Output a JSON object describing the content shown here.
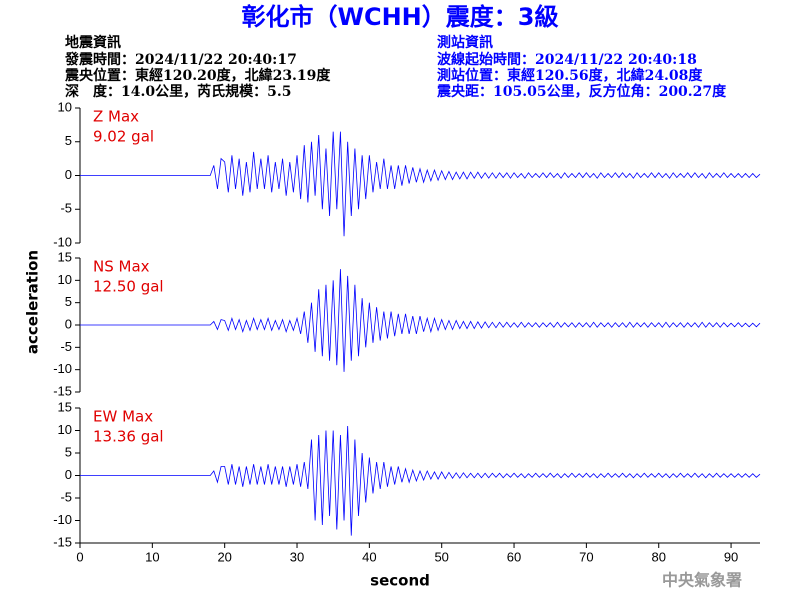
{
  "header": {
    "title": "彰化市（WCHH）震度：3級",
    "left": [
      "地震資訊",
      "發震時間：2024/11/22 20:40:17",
      "震央位置：東經120.20度，北緯23.19度",
      "深　度：14.0公里，芮氏規模：5.5"
    ],
    "right": [
      "測站資訊",
      "波線起始時間：2024/11/22 20:40:18",
      "測站位置：東經120.56度，北緯24.08度",
      "震央距：105.05公里，反方位角：200.27度"
    ],
    "watermark": "中央氣象署"
  },
  "axes": {
    "xlabel": "second",
    "ylabel": "acceleration",
    "xlim": [
      0,
      94
    ],
    "xticks": [
      0,
      10,
      20,
      30,
      40,
      50,
      60,
      70,
      80,
      90
    ]
  },
  "chart_data": [
    {
      "type": "line",
      "label": "Z Max",
      "max_label": "9.02 gal",
      "color": "#0000ff",
      "ylim": [
        -10,
        10
      ],
      "yticks": [
        -10,
        -5,
        0,
        5,
        10
      ],
      "x": [
        0,
        18,
        18.5,
        19,
        19.5,
        20,
        20.5,
        21,
        21.5,
        22,
        22.5,
        23,
        23.5,
        24,
        24.5,
        25,
        25.5,
        26,
        26.5,
        27,
        27.5,
        28,
        28.5,
        29,
        29.5,
        30,
        30.5,
        31,
        31.5,
        32,
        32.5,
        33,
        33.5,
        34,
        34.5,
        35,
        35.5,
        36,
        36.5,
        37,
        37.5,
        38,
        38.5,
        39,
        39.5,
        40,
        40.5,
        41,
        41.5,
        42,
        42.5,
        43,
        43.5,
        44,
        44.5,
        45,
        45.5,
        46,
        46.5,
        47,
        47.5,
        48,
        48.5,
        49,
        49.5,
        50,
        50.5,
        51,
        51.5,
        52,
        52.5,
        53,
        53.5,
        54,
        54.5,
        55,
        55.5,
        56,
        56.5,
        57,
        57.5,
        58,
        58.5,
        59,
        59.5,
        60,
        60.5,
        61,
        61.5,
        62,
        62.5,
        63,
        63.5,
        64,
        64.5,
        65,
        65.5,
        66,
        66.5,
        67,
        67.5,
        68,
        68.5,
        69,
        69.5,
        70,
        70.5,
        71,
        71.5,
        72,
        72.5,
        73,
        73.5,
        74,
        74.5,
        75,
        75.5,
        76,
        76.5,
        77,
        77.5,
        78,
        78.5,
        79,
        79.5,
        80,
        80.5,
        81,
        81.5,
        82,
        82.5,
        83,
        83.5,
        84,
        84.5,
        85,
        85.5,
        86,
        86.5,
        87,
        87.5,
        88,
        88.5,
        89,
        89.5,
        90,
        90.5,
        91,
        91.5,
        92,
        92.5,
        93,
        93.5,
        94
      ],
      "values": [
        0,
        0,
        1.5,
        -2,
        2.5,
        2,
        -2.5,
        3,
        -2,
        2.5,
        -3,
        2,
        -2.5,
        3.5,
        -2,
        2.5,
        -2,
        3,
        -2.5,
        2,
        -2,
        2.5,
        -3,
        2,
        -2.5,
        3,
        -3.5,
        4.5,
        -4,
        5,
        -3,
        6,
        -5,
        4,
        -6,
        6.5,
        -5,
        6.5,
        -9,
        5,
        -6,
        4,
        -5,
        3,
        -3.5,
        3,
        -2.5,
        2,
        -2,
        2.5,
        -2,
        1.5,
        -2,
        1.5,
        -1.5,
        1.5,
        -1.2,
        1.2,
        -1,
        1,
        -1,
        0.8,
        -0.8,
        0.8,
        -0.7,
        0.7,
        -0.6,
        0.6,
        -0.6,
        0.5,
        -0.5,
        0.5,
        -0.5,
        0.5,
        -0.4,
        0.5,
        -0.4,
        0.4,
        -0.4,
        0.4,
        -0.4,
        0.4,
        -0.3,
        0.4,
        -0.4,
        0.4,
        -0.3,
        0.3,
        -0.4,
        0.4,
        -0.3,
        0.3,
        -0.3,
        0.4,
        -0.3,
        0.4,
        -0.3,
        0.3,
        -0.4,
        0.4,
        -0.3,
        0.3,
        -0.3,
        0.4,
        -0.3,
        0.4,
        -0.3,
        0.3,
        -0.4,
        0.4,
        -0.3,
        0.3,
        -0.3,
        0.4,
        -0.3,
        0.4,
        -0.3,
        0.3,
        -0.4,
        0.4,
        -0.3,
        0.3,
        -0.3,
        0.4,
        -0.3,
        0.4,
        -0.3,
        0.3,
        -0.4,
        0.4,
        -0.3,
        0.3,
        -0.3,
        0.4,
        -0.3,
        0.4,
        -0.3,
        0.3,
        -0.4,
        0.4,
        -0.3,
        0.3,
        -0.3,
        0.4,
        -0.3,
        0.3,
        -0.3,
        0.3,
        -0.3,
        0.3,
        -0.3,
        0.3,
        -0.3,
        0.2
      ]
    },
    {
      "type": "line",
      "label": "NS Max",
      "max_label": "12.50 gal",
      "color": "#0000ff",
      "ylim": [
        -15,
        15
      ],
      "yticks": [
        -15,
        -10,
        -5,
        0,
        5,
        10,
        15
      ],
      "x": [
        0,
        18,
        18.5,
        19,
        19.5,
        20,
        20.5,
        21,
        21.5,
        22,
        22.5,
        23,
        23.5,
        24,
        24.5,
        25,
        25.5,
        26,
        26.5,
        27,
        27.5,
        28,
        28.5,
        29,
        29.5,
        30,
        30.5,
        31,
        31.5,
        32,
        32.5,
        33,
        33.5,
        34,
        34.5,
        35,
        35.5,
        36,
        36.5,
        37,
        37.5,
        38,
        38.5,
        39,
        39.5,
        40,
        40.5,
        41,
        41.5,
        42,
        42.5,
        43,
        43.5,
        44,
        44.5,
        45,
        45.5,
        46,
        46.5,
        47,
        47.5,
        48,
        48.5,
        49,
        49.5,
        50,
        50.5,
        51,
        51.5,
        52,
        52.5,
        53,
        53.5,
        54,
        54.5,
        55,
        55.5,
        56,
        56.5,
        57,
        57.5,
        58,
        58.5,
        59,
        59.5,
        60,
        60.5,
        61,
        61.5,
        62,
        62.5,
        63,
        63.5,
        64,
        64.5,
        65,
        65.5,
        66,
        66.5,
        67,
        67.5,
        68,
        68.5,
        69,
        69.5,
        70,
        70.5,
        71,
        71.5,
        72,
        72.5,
        73,
        73.5,
        74,
        74.5,
        75,
        75.5,
        76,
        76.5,
        77,
        77.5,
        78,
        78.5,
        79,
        79.5,
        80,
        80.5,
        81,
        81.5,
        82,
        82.5,
        83,
        83.5,
        84,
        84.5,
        85,
        85.5,
        86,
        86.5,
        87,
        87.5,
        88,
        88.5,
        89,
        89.5,
        90,
        90.5,
        91,
        91.5,
        92,
        92.5,
        93,
        93.5,
        94
      ],
      "values": [
        0,
        0,
        0.8,
        -1,
        1.2,
        1,
        -1.2,
        1.5,
        -1,
        1.2,
        -1.5,
        1,
        -1.2,
        1.5,
        -1,
        1.2,
        -1,
        1.5,
        -1.2,
        1,
        -1,
        1.2,
        -1.5,
        1,
        -1.2,
        1.5,
        -2,
        3,
        -4,
        5,
        -6,
        8,
        -7,
        9,
        -8,
        10,
        -9,
        12.5,
        -10.5,
        11,
        -8,
        9,
        -7,
        6,
        -5,
        5,
        -4,
        4,
        -3.5,
        3,
        -3,
        3,
        -2.5,
        2.5,
        -2,
        2.5,
        -2,
        2,
        -2,
        2,
        -1.5,
        1.5,
        -1.5,
        1.5,
        -1.2,
        1.2,
        -1,
        1,
        -1,
        1,
        -0.8,
        0.8,
        -0.8,
        0.8,
        -0.8,
        0.7,
        -0.7,
        0.7,
        -0.6,
        0.6,
        -0.6,
        0.6,
        -0.5,
        0.6,
        -0.5,
        0.5,
        -0.5,
        0.6,
        -0.5,
        0.5,
        -0.4,
        0.5,
        -0.5,
        0.5,
        -0.4,
        0.5,
        -0.5,
        0.6,
        -0.5,
        0.5,
        -0.4,
        0.5,
        -0.5,
        0.5,
        -0.4,
        0.5,
        -0.5,
        0.6,
        -0.5,
        0.5,
        -0.4,
        0.5,
        -0.5,
        0.5,
        -0.4,
        0.5,
        -0.5,
        0.6,
        -0.5,
        0.5,
        -0.4,
        0.5,
        -0.5,
        0.5,
        -0.4,
        0.5,
        -0.5,
        0.6,
        -0.5,
        0.5,
        -0.4,
        0.5,
        -0.5,
        0.5,
        -0.4,
        0.5,
        -0.5,
        0.6,
        -0.5,
        0.5,
        -0.4,
        0.5,
        -0.5,
        0.5,
        -0.4,
        0.4,
        -0.4,
        0.5,
        -0.4,
        0.4,
        -0.4,
        0.4,
        -0.4,
        0.4
      ]
    },
    {
      "type": "line",
      "label": "EW Max",
      "max_label": "13.36 gal",
      "color": "#0000ff",
      "ylim": [
        -15,
        15
      ],
      "yticks": [
        -15,
        -10,
        -5,
        0,
        5,
        10,
        15
      ],
      "x": [
        0,
        18,
        18.5,
        19,
        19.5,
        20,
        20.5,
        21,
        21.5,
        22,
        22.5,
        23,
        23.5,
        24,
        24.5,
        25,
        25.5,
        26,
        26.5,
        27,
        27.5,
        28,
        28.5,
        29,
        29.5,
        30,
        30.5,
        31,
        31.5,
        32,
        32.5,
        33,
        33.5,
        34,
        34.5,
        35,
        35.5,
        36,
        36.5,
        37,
        37.5,
        38,
        38.5,
        39,
        39.5,
        40,
        40.5,
        41,
        41.5,
        42,
        42.5,
        43,
        43.5,
        44,
        44.5,
        45,
        45.5,
        46,
        46.5,
        47,
        47.5,
        48,
        48.5,
        49,
        49.5,
        50,
        50.5,
        51,
        51.5,
        52,
        52.5,
        53,
        53.5,
        54,
        54.5,
        55,
        55.5,
        56,
        56.5,
        57,
        57.5,
        58,
        58.5,
        59,
        59.5,
        60,
        60.5,
        61,
        61.5,
        62,
        62.5,
        63,
        63.5,
        64,
        64.5,
        65,
        65.5,
        66,
        66.5,
        67,
        67.5,
        68,
        68.5,
        69,
        69.5,
        70,
        70.5,
        71,
        71.5,
        72,
        72.5,
        73,
        73.5,
        74,
        74.5,
        75,
        75.5,
        76,
        76.5,
        77,
        77.5,
        78,
        78.5,
        79,
        79.5,
        80,
        80.5,
        81,
        81.5,
        82,
        82.5,
        83,
        83.5,
        84,
        84.5,
        85,
        85.5,
        86,
        86.5,
        87,
        87.5,
        88,
        88.5,
        89,
        89.5,
        90,
        90.5,
        91,
        91.5,
        92,
        92.5,
        93,
        93.5,
        94
      ],
      "values": [
        0,
        0,
        1,
        -1.5,
        2,
        2,
        -2,
        2.5,
        -2,
        2,
        -2.5,
        2,
        -2,
        2.5,
        -2,
        2,
        -2,
        2.5,
        -2,
        2,
        -2,
        2,
        -2.5,
        2,
        -2,
        2.5,
        -2.5,
        3,
        -3,
        8,
        -10,
        9,
        -11,
        10,
        -9,
        10,
        -12,
        9,
        -10,
        11,
        -13.36,
        8,
        -9,
        5,
        -6,
        4,
        -4,
        3,
        -3,
        3,
        -2.5,
        2,
        -2,
        2,
        -1.5,
        1.5,
        -1.5,
        1.2,
        -1.2,
        1,
        -1,
        1,
        -0.8,
        0.8,
        -0.8,
        0.8,
        -0.7,
        0.7,
        -0.6,
        0.6,
        -0.6,
        0.6,
        -0.5,
        0.5,
        -0.5,
        0.5,
        -0.5,
        0.5,
        -0.5,
        0.5,
        -0.4,
        0.5,
        -0.5,
        0.4,
        -0.4,
        0.5,
        -0.4,
        0.4,
        -0.5,
        0.4,
        -0.4,
        0.5,
        -0.4,
        0.4,
        -0.4,
        0.5,
        -0.4,
        0.4,
        -0.5,
        0.4,
        -0.4,
        0.5,
        -0.4,
        0.4,
        -0.4,
        0.5,
        -0.4,
        0.4,
        -0.5,
        0.4,
        -0.4,
        0.5,
        -0.4,
        0.4,
        -0.4,
        0.5,
        -0.4,
        0.4,
        -0.5,
        0.4,
        -0.4,
        0.5,
        -0.4,
        0.4,
        -0.4,
        0.5,
        -0.4,
        0.4,
        -0.5,
        0.4,
        -0.4,
        0.5,
        -0.4,
        0.4,
        -0.4,
        0.5,
        -0.4,
        0.4,
        -0.5,
        0.4,
        -0.4,
        0.5,
        -0.4,
        0.4,
        -0.4,
        0.4,
        -0.4,
        0.4,
        -0.4,
        0.4,
        -0.4,
        0.4,
        -0.4,
        0.3
      ]
    }
  ]
}
